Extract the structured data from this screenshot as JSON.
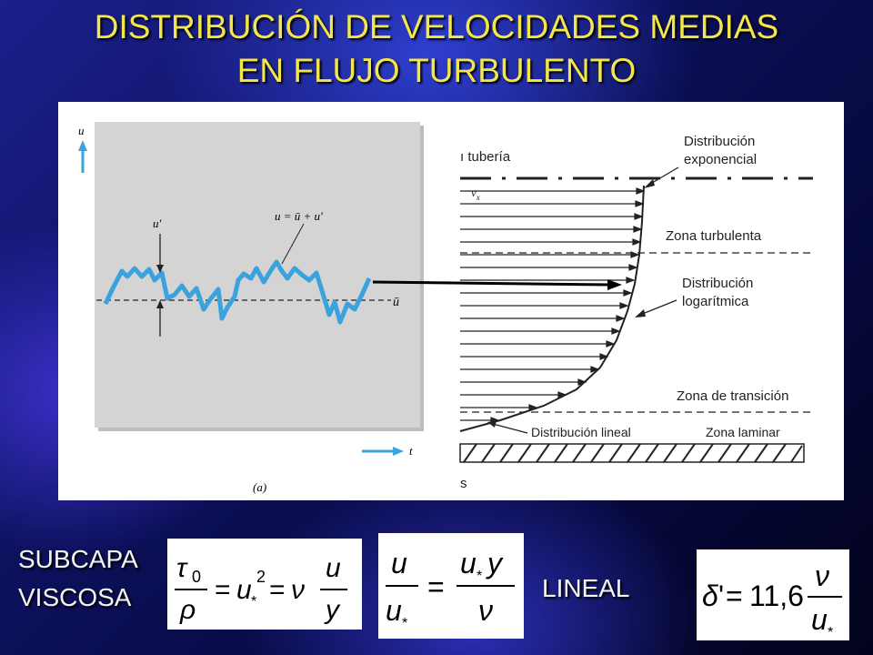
{
  "title": {
    "line1": "DISTRIBUCIÓN DE VELOCIDADES MEDIAS",
    "line2": "EN FLUJO TURBULENTO"
  },
  "colors": {
    "title": "#f2e64a",
    "label": "#f4f4f4",
    "signal": "#3aa2dc",
    "panel_gray": "#d4d4d4"
  },
  "panel_a": {
    "axis_y": "u",
    "axis_x": "t",
    "fluct_label": "u'",
    "equation_label": "u = ū + u'",
    "mean_label": "ū",
    "caption": "(a)"
  },
  "panel_b": {
    "pipe_label": "ı tubería",
    "vx_label": "v",
    "vx_sub": "x",
    "exp_line1": "Distribución",
    "exp_line2": "exponencial",
    "turb_zone": "Zona turbulenta",
    "log_line1": "Distribución",
    "log_line2": "logarítmica",
    "trans_zone": "Zona de transición",
    "lin_dist": "Distribución lineal",
    "lam_zone": "Zona laminar",
    "bottom_char": "s"
  },
  "labels": {
    "subcapa": "SUBCAPA",
    "viscosa": "VISCOSA",
    "lineal": "LINEAL"
  }
}
